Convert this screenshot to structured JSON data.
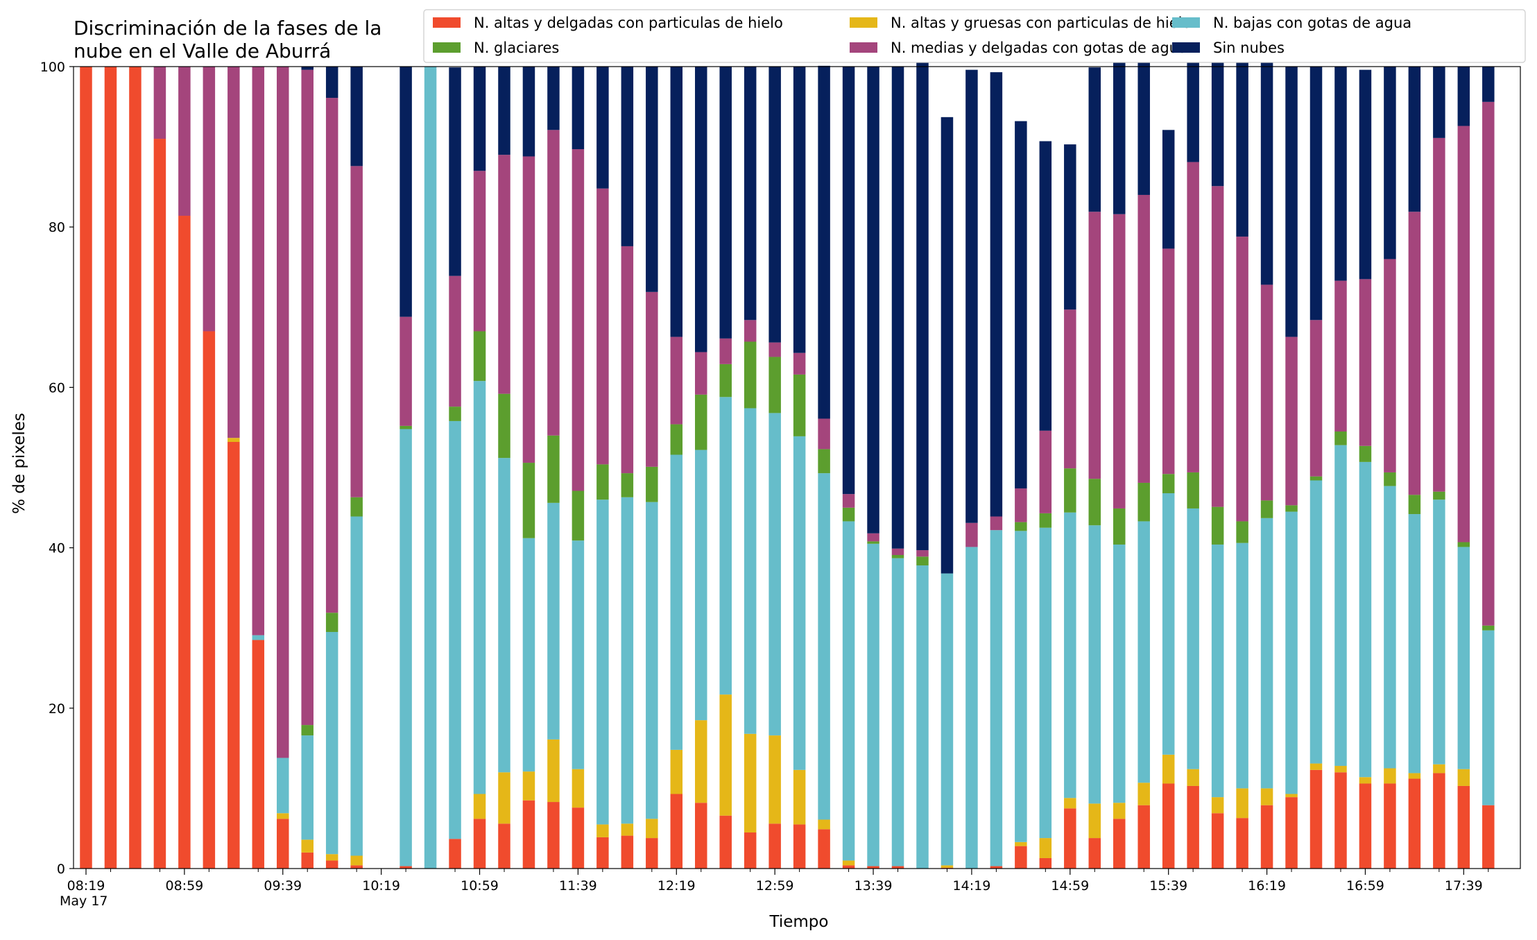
{
  "chart_data": {
    "type": "bar",
    "stacked": true,
    "title_lines": [
      "Discriminación de la fases de la",
      "nube en el Valle de Aburrá"
    ],
    "xlabel": "Tiempo",
    "ylabel": "% de pixeles",
    "ylim": [
      0,
      100
    ],
    "yticks": [
      0,
      20,
      40,
      60,
      80,
      100
    ],
    "xtick_labels": [
      {
        "index": 0,
        "label": "08:19"
      },
      {
        "index": 4,
        "label": "08:59"
      },
      {
        "index": 8,
        "label": "09:39"
      },
      {
        "index": 12,
        "label": "10:19"
      },
      {
        "index": 16,
        "label": "10:59"
      },
      {
        "index": 20,
        "label": "11:39"
      },
      {
        "index": 24,
        "label": "12:19"
      },
      {
        "index": 28,
        "label": "12:59"
      },
      {
        "index": 32,
        "label": "13:39"
      },
      {
        "index": 36,
        "label": "14:19"
      },
      {
        "index": 40,
        "label": "14:59"
      },
      {
        "index": 44,
        "label": "15:39"
      },
      {
        "index": 48,
        "label": "16:19"
      },
      {
        "index": 52,
        "label": "16:59"
      },
      {
        "index": 56,
        "label": "17:39"
      }
    ],
    "xtick_sublabel": "May 17",
    "categories": [
      "08:19",
      "08:29",
      "08:39",
      "08:49",
      "08:59",
      "09:09",
      "09:19",
      "09:29",
      "09:39",
      "09:49",
      "09:59",
      "10:09",
      "10:19",
      "10:29",
      "10:39",
      "10:49",
      "10:59",
      "11:09",
      "11:19",
      "11:29",
      "11:39",
      "11:49",
      "11:59",
      "12:09",
      "12:19",
      "12:29",
      "12:39",
      "12:49",
      "12:59",
      "13:09",
      "13:19",
      "13:29",
      "13:39",
      "13:49",
      "13:59",
      "14:09",
      "14:19",
      "14:29",
      "14:39",
      "14:49",
      "14:59",
      "15:09",
      "15:19",
      "15:29",
      "15:39",
      "15:49",
      "15:59",
      "16:09",
      "16:19",
      "16:29",
      "16:39",
      "16:49",
      "16:59",
      "17:09",
      "17:19",
      "17:29",
      "17:39",
      "17:49"
    ],
    "legend": {
      "placement": "top-right",
      "columns": 3
    },
    "series": [
      {
        "name": "N. altas y delgadas con particulas de hielo",
        "color": "#f04b2d",
        "values": [
          100,
          100,
          100,
          91,
          81.4,
          67,
          53.2,
          28.5,
          6.2,
          2,
          1,
          0.4,
          0,
          0.3,
          0,
          3.7,
          6.2,
          5.6,
          8.5,
          8.3,
          7.6,
          3.9,
          4.1,
          3.8,
          9.3,
          8.2,
          6.6,
          4.5,
          5.6,
          5.5,
          4.9,
          0.4,
          0.3,
          0.3,
          0,
          0.1,
          0,
          0.3,
          2.8,
          1.3,
          7.5,
          3.8,
          6.2,
          7.9,
          10.6,
          10.3,
          6.9,
          6.3,
          7.9,
          8.9,
          12.3,
          12,
          10.6,
          10.6,
          11.2,
          11.9,
          10.3,
          7.9
        ]
      },
      {
        "name": "N. altas y gruesas con particulas de hielo",
        "color": "#e5b718",
        "values": [
          0,
          0,
          0,
          0,
          0,
          0,
          0.5,
          0,
          0.7,
          1.6,
          0.8,
          1.2,
          0,
          0,
          0,
          0,
          3.1,
          6.4,
          3.6,
          7.8,
          4.8,
          1.6,
          1.5,
          2.4,
          5.5,
          10.3,
          15.1,
          12.3,
          11,
          6.8,
          1.2,
          0.6,
          0,
          0,
          0,
          0.3,
          0,
          0,
          0.5,
          2.5,
          1.3,
          4.3,
          2,
          2.8,
          3.6,
          2.1,
          2,
          3.7,
          2.1,
          0.4,
          0.8,
          0.8,
          0.8,
          1.9,
          0.7,
          1.1,
          2.1,
          0
        ]
      },
      {
        "name": "N. bajas con gotas de agua",
        "color": "#66bdca",
        "values": [
          0,
          0,
          0,
          0,
          0,
          0,
          0,
          0.6,
          6.9,
          13,
          27.7,
          42.3,
          0,
          54.5,
          100,
          52.1,
          51.5,
          39.2,
          29.1,
          29.5,
          28.5,
          40.5,
          40.7,
          39.5,
          36.8,
          33.7,
          37.1,
          40.6,
          40.2,
          41.6,
          43.2,
          42.3,
          40.2,
          38.4,
          37.8,
          36.4,
          40.1,
          41.9,
          38.8,
          38.7,
          35.6,
          34.7,
          32.2,
          32.6,
          32.6,
          32.5,
          31.5,
          30.6,
          33.7,
          35.2,
          35.3,
          40,
          39.3,
          35.2,
          32.3,
          33,
          27.7,
          21.8
        ]
      },
      {
        "name": "N. glaciares",
        "color": "#5c9e2e",
        "values": [
          0,
          0,
          0,
          0,
          0,
          0,
          0,
          0,
          0,
          1.3,
          2.4,
          2.4,
          0,
          0.4,
          0,
          1.8,
          6.2,
          8,
          9.4,
          8.4,
          6.2,
          4.4,
          3,
          4.4,
          3.8,
          6.9,
          4.1,
          8.3,
          7,
          7.7,
          3,
          1.7,
          0.3,
          0.4,
          1.1,
          0,
          0,
          0,
          1.1,
          1.8,
          5.5,
          5.8,
          4.5,
          4.8,
          2.4,
          4.5,
          4.7,
          2.7,
          2.2,
          0.8,
          0.5,
          1.7,
          2,
          1.7,
          2.4,
          1,
          0.6,
          0.6
        ]
      },
      {
        "name": "N. medias y delgadas con gotas de agua",
        "color": "#a4457c",
        "values": [
          0,
          0,
          0,
          9,
          18.6,
          33,
          46.3,
          70.9,
          86.2,
          81.7,
          64.2,
          41.3,
          0,
          13.6,
          0,
          16.3,
          20,
          29.8,
          38.2,
          38.1,
          42.6,
          34.4,
          28.3,
          21.8,
          10.9,
          5.3,
          3.2,
          2.7,
          1.8,
          2.7,
          3.8,
          1.7,
          1,
          0.8,
          0.8,
          0,
          3,
          1.7,
          4.2,
          10.3,
          19.8,
          33.3,
          36.7,
          35.9,
          28.1,
          38.7,
          40,
          35.5,
          26.9,
          21,
          19.5,
          18.8,
          20.8,
          26.6,
          35.3,
          44.1,
          51.9,
          65.3
        ]
      },
      {
        "name": "Sin nubes",
        "color": "#06205c",
        "values": [
          0,
          0,
          0,
          0,
          0,
          0,
          0,
          0,
          0,
          0.4,
          3.9,
          12.4,
          0,
          31.2,
          0,
          26,
          13,
          11,
          11.2,
          7.9,
          10.3,
          15.2,
          22.4,
          28.1,
          33.7,
          35.6,
          33.9,
          31.6,
          34.4,
          35.7,
          44,
          53.3,
          58.2,
          60.1,
          62.3,
          56.9,
          56.5,
          55.4,
          45.8,
          36.1,
          20.6,
          18,
          18.9,
          20.8,
          14.8,
          15.1,
          18.5,
          24,
          31.2,
          33.7,
          31.6,
          26.7,
          26.1,
          24,
          18.1,
          8.9,
          7.4,
          4.4
        ]
      }
    ]
  }
}
